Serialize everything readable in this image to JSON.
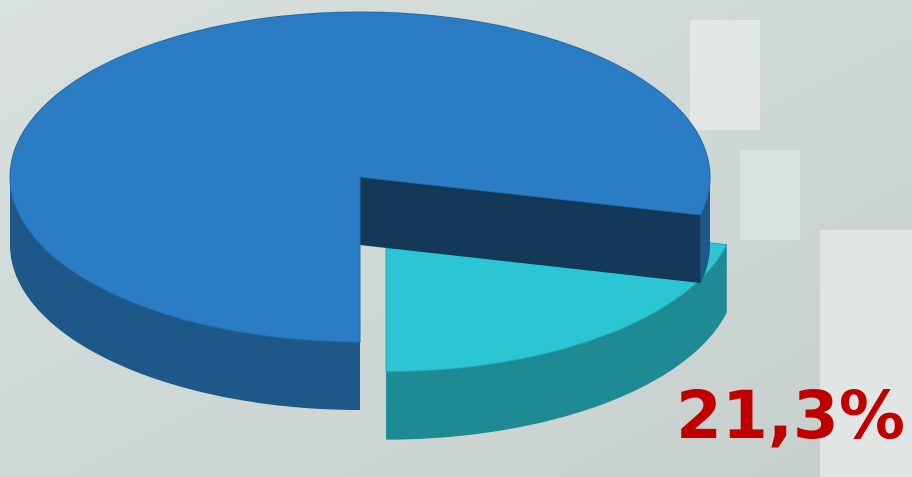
{
  "chart_data": {
    "type": "pie3d",
    "values": [
      21.3,
      78.7
    ],
    "value_labels": [
      "21,3%",
      null
    ],
    "colors": [
      "#2bc5d3",
      "#2a7dc4"
    ],
    "exploded": [
      true,
      false
    ]
  }
}
